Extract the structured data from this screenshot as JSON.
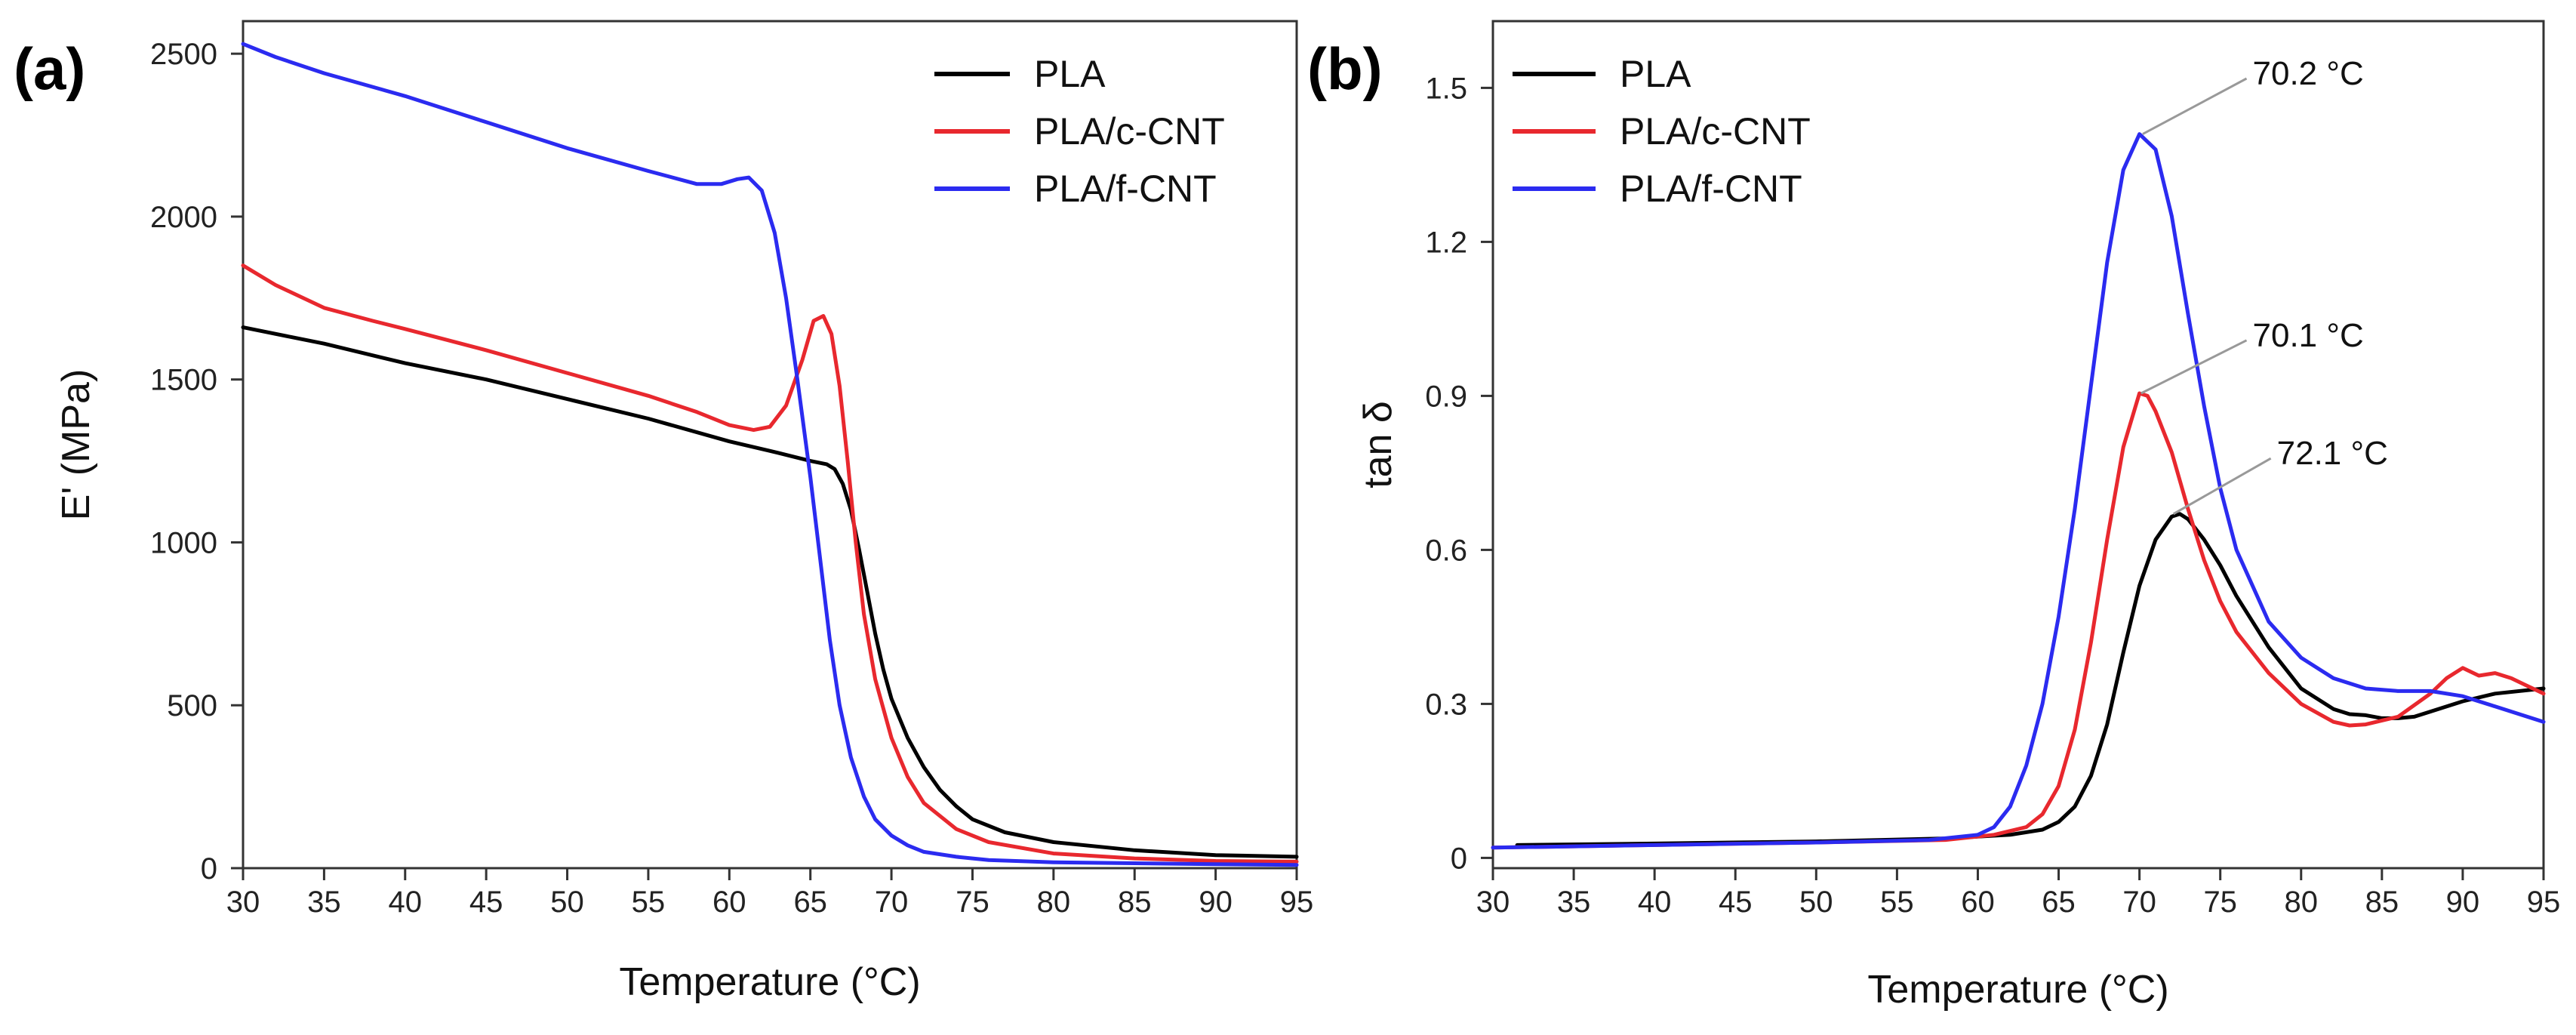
{
  "chart_data": [
    {
      "panel": "(a)",
      "type": "line",
      "title": "",
      "xlabel": "Temperature (°C)",
      "ylabel": "E' (MPa)",
      "xlim": [
        30,
        95
      ],
      "ylim": [
        0,
        2600
      ],
      "xticks": [
        30,
        35,
        40,
        45,
        50,
        55,
        60,
        65,
        70,
        75,
        80,
        85,
        90,
        95
      ],
      "yticks": [
        0,
        500,
        1000,
        1500,
        2000,
        2500
      ],
      "legend_position": "top-right",
      "series": [
        {
          "name": "PLA",
          "color": "#000000",
          "x": [
            30,
            33,
            35,
            40,
            45,
            50,
            55,
            60,
            63,
            65,
            66,
            66.5,
            67,
            67.5,
            68,
            68.5,
            69,
            69.5,
            70,
            71,
            72,
            73,
            74,
            75,
            77,
            80,
            85,
            90,
            95
          ],
          "y": [
            1660,
            1630,
            1610,
            1550,
            1500,
            1440,
            1380,
            1310,
            1275,
            1250,
            1240,
            1225,
            1180,
            1100,
            980,
            850,
            720,
            610,
            520,
            400,
            310,
            240,
            190,
            150,
            110,
            80,
            55,
            40,
            35
          ]
        },
        {
          "name": "PLA/c-CNT",
          "color": "#e8282e",
          "x": [
            30,
            32,
            35,
            38,
            40,
            45,
            50,
            55,
            58,
            60,
            61.5,
            62.5,
            63.5,
            64.5,
            65.2,
            65.8,
            66.3,
            66.8,
            67.3,
            67.8,
            68.3,
            69,
            70,
            71,
            72,
            74,
            76,
            80,
            85,
            90,
            95
          ],
          "y": [
            1850,
            1790,
            1720,
            1680,
            1655,
            1590,
            1520,
            1450,
            1400,
            1360,
            1345,
            1355,
            1420,
            1560,
            1680,
            1695,
            1640,
            1480,
            1250,
            1000,
            780,
            580,
            400,
            280,
            200,
            120,
            80,
            45,
            30,
            22,
            20
          ]
        },
        {
          "name": "PLA/f-CNT",
          "color": "#2b2bf0",
          "x": [
            30,
            32,
            35,
            40,
            45,
            50,
            55,
            58,
            59.5,
            60.5,
            61.2,
            62,
            62.8,
            63.5,
            64.2,
            65,
            65.6,
            66.2,
            66.8,
            67.5,
            68.3,
            69,
            70,
            71,
            72,
            74,
            76,
            80,
            85,
            90,
            95
          ],
          "y": [
            2530,
            2490,
            2440,
            2370,
            2290,
            2210,
            2140,
            2100,
            2100,
            2115,
            2120,
            2080,
            1950,
            1750,
            1500,
            1200,
            950,
            700,
            500,
            340,
            220,
            150,
            100,
            70,
            50,
            35,
            25,
            18,
            15,
            12,
            10
          ]
        }
      ]
    },
    {
      "panel": "(b)",
      "type": "line",
      "title": "",
      "xlabel": "Temperature (°C)",
      "ylabel": "tan δ",
      "xlim": [
        30,
        95
      ],
      "ylim": [
        -0.02,
        1.63
      ],
      "xticks": [
        30,
        35,
        40,
        45,
        50,
        55,
        60,
        65,
        70,
        75,
        80,
        85,
        90,
        95
      ],
      "yticks": [
        0,
        0.3,
        0.6,
        0.9,
        1.2,
        1.5
      ],
      "ytick_labels": [
        "0",
        "0.3",
        "0.6",
        "0.9",
        "1.2",
        "1.5"
      ],
      "legend_position": "top-left",
      "series": [
        {
          "name": "PLA",
          "color": "#000000",
          "x": [
            31.5,
            40,
            50,
            58,
            62,
            64,
            65,
            66,
            67,
            68,
            69,
            70,
            71,
            72,
            72.5,
            73,
            74,
            75,
            76,
            78,
            80,
            82,
            83,
            84,
            85,
            86,
            87,
            88,
            90,
            92,
            95
          ],
          "y": [
            0.025,
            0.028,
            0.032,
            0.038,
            0.045,
            0.055,
            0.07,
            0.1,
            0.16,
            0.26,
            0.4,
            0.53,
            0.62,
            0.665,
            0.67,
            0.66,
            0.62,
            0.57,
            0.51,
            0.41,
            0.33,
            0.29,
            0.28,
            0.278,
            0.272,
            0.272,
            0.275,
            0.285,
            0.305,
            0.32,
            0.33
          ]
        },
        {
          "name": "PLA/c-CNT",
          "color": "#e8282e",
          "x": [
            30,
            40,
            50,
            58,
            61,
            63,
            64,
            65,
            66,
            67,
            68,
            69,
            70,
            70.5,
            71,
            72,
            73,
            74,
            75,
            76,
            78,
            80,
            82,
            83,
            84,
            86,
            88,
            89,
            90,
            91,
            92,
            93,
            94,
            95
          ],
          "y": [
            0.02,
            0.025,
            0.03,
            0.035,
            0.045,
            0.06,
            0.085,
            0.14,
            0.25,
            0.42,
            0.62,
            0.8,
            0.905,
            0.9,
            0.87,
            0.79,
            0.68,
            0.58,
            0.5,
            0.44,
            0.36,
            0.3,
            0.265,
            0.258,
            0.26,
            0.275,
            0.32,
            0.35,
            0.37,
            0.355,
            0.36,
            0.35,
            0.335,
            0.32
          ]
        },
        {
          "name": "PLA/f-CNT",
          "color": "#2b2bf0",
          "x": [
            30,
            40,
            50,
            57,
            60,
            61,
            62,
            63,
            64,
            65,
            66,
            67,
            68,
            69,
            70,
            71,
            72,
            73,
            74,
            75,
            76,
            78,
            80,
            82,
            84,
            86,
            88,
            90,
            92,
            95
          ],
          "y": [
            0.02,
            0.025,
            0.03,
            0.035,
            0.045,
            0.06,
            0.1,
            0.18,
            0.3,
            0.47,
            0.68,
            0.92,
            1.16,
            1.34,
            1.41,
            1.38,
            1.25,
            1.06,
            0.88,
            0.72,
            0.6,
            0.46,
            0.39,
            0.35,
            0.33,
            0.325,
            0.325,
            0.315,
            0.295,
            0.265
          ]
        }
      ],
      "annotations": [
        {
          "text": "70.2 °C",
          "x": 70.2,
          "y": 1.41,
          "text_x": 77,
          "text_y": 1.53
        },
        {
          "text": "70.1 °C",
          "x": 70.1,
          "y": 0.905,
          "text_x": 77,
          "text_y": 1.02
        },
        {
          "text": "72.1 °C",
          "x": 72.1,
          "y": 0.67,
          "text_x": 78.5,
          "text_y": 0.79
        }
      ]
    }
  ]
}
